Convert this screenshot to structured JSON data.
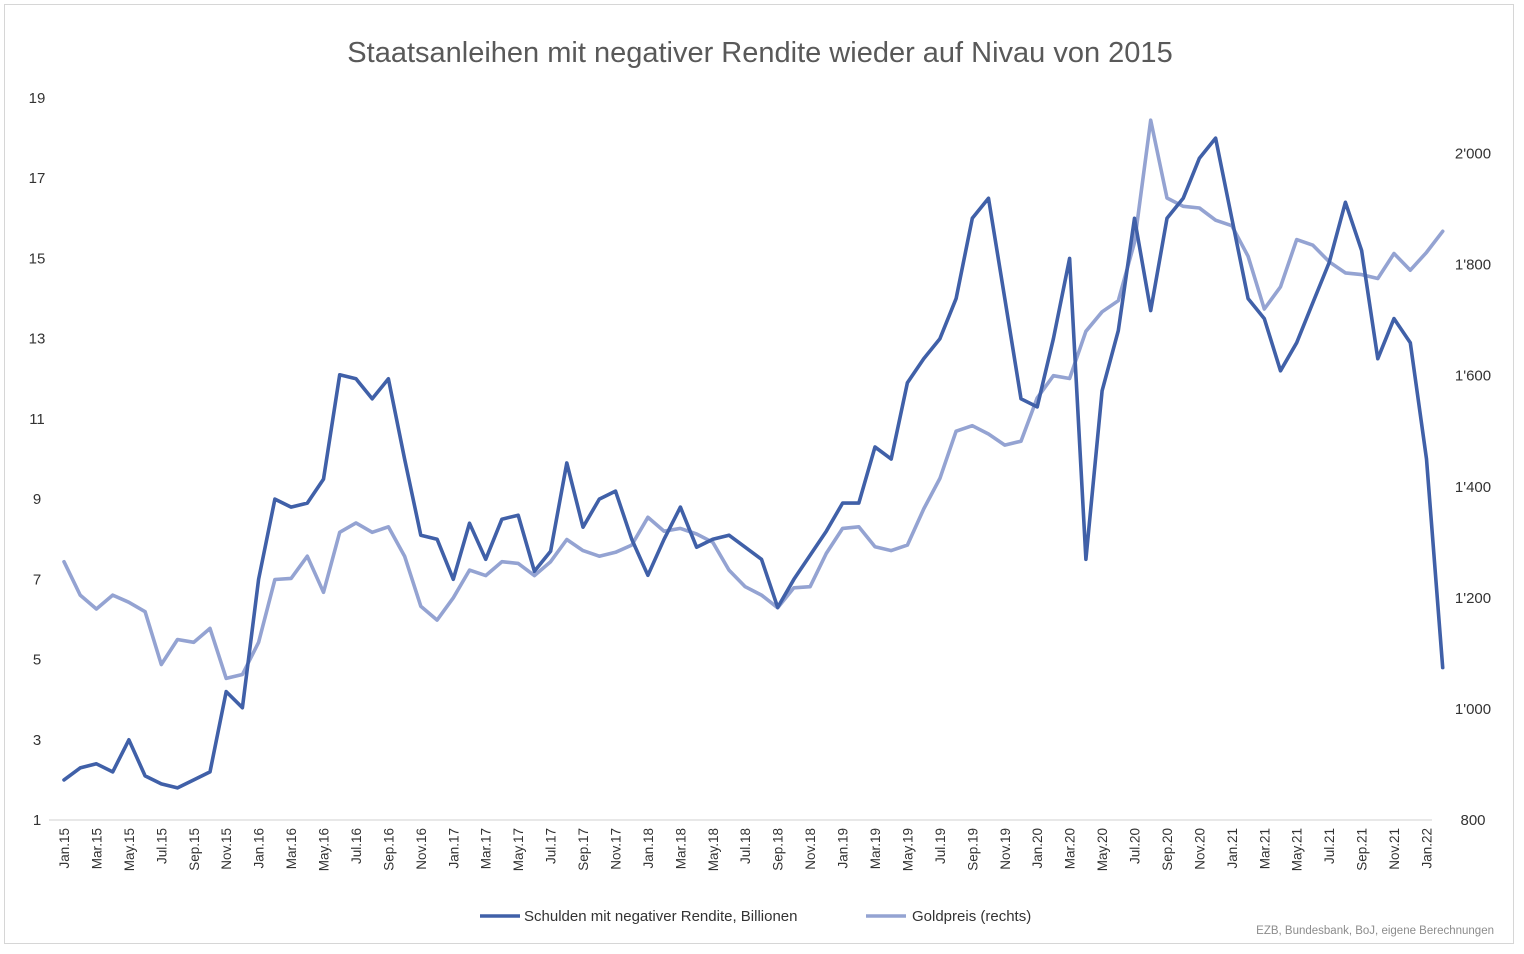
{
  "chart_data": {
    "type": "line",
    "title": "Staatsanleihen mit negativer Rendite wieder auf Nivau von 2015",
    "source": "EZB, Bundesbank, BoJ, eigene Berechnungen",
    "x_tick_labels": [
      "Jan.15",
      "Mar.15",
      "May.15",
      "Jul.15",
      "Sep.15",
      "Nov.15",
      "Jan.16",
      "Mar.16",
      "May.16",
      "Jul.16",
      "Sep.16",
      "Nov.16",
      "Jan.17",
      "Mar.17",
      "May.17",
      "Jul.17",
      "Sep.17",
      "Nov.17",
      "Jan.18",
      "Mar.18",
      "May.18",
      "Jul.18",
      "Sep.18",
      "Nov.18",
      "Jan.19",
      "Mar.19",
      "May.19",
      "Jul.19",
      "Sep.19",
      "Nov.19",
      "Jan.20",
      "Mar.20",
      "May.20",
      "Jul.20",
      "Sep.20",
      "Nov.20",
      "Jan.21",
      "Mar.21",
      "May.21",
      "Jul.21",
      "Sep.21",
      "Nov.21",
      "Jan.22"
    ],
    "y_left": {
      "min": 1,
      "max": 19,
      "ticks": [
        1,
        3,
        5,
        7,
        9,
        11,
        13,
        15,
        17,
        19
      ]
    },
    "y_right": {
      "min": 800,
      "max": 2100,
      "ticks": [
        800,
        1000,
        1200,
        1400,
        1600,
        1800,
        2000
      ],
      "tick_labels": [
        "800",
        "1'000",
        "1'200",
        "1'400",
        "1'600",
        "1'800",
        "2'000"
      ]
    },
    "grid": false,
    "legend_position": "bottom",
    "series": [
      {
        "name": "Schulden mit negativer Rendite, Billionen",
        "axis": "left",
        "color": "#4060a8",
        "values": [
          2.0,
          2.3,
          2.4,
          2.2,
          3.0,
          2.1,
          1.9,
          1.8,
          2.0,
          2.2,
          4.2,
          3.8,
          7.0,
          9.0,
          8.8,
          8.9,
          9.5,
          12.1,
          12.0,
          11.5,
          12.0,
          10.0,
          8.1,
          8.0,
          7.0,
          8.4,
          7.5,
          8.5,
          8.6,
          7.2,
          7.7,
          9.9,
          8.3,
          9.0,
          9.2,
          8.0,
          7.1,
          8.0,
          8.8,
          7.8,
          8.0,
          8.1,
          7.8,
          7.5,
          6.3,
          7.0,
          7.6,
          8.2,
          8.9,
          8.9,
          10.3,
          10.0,
          11.9,
          12.5,
          13.0,
          14.0,
          16.0,
          16.5,
          14.0,
          11.5,
          11.3,
          13.0,
          15.0,
          7.5,
          11.7,
          13.2,
          16.0,
          13.7,
          16.0,
          16.5,
          17.5,
          18.0,
          16.0,
          14.0,
          13.5,
          12.2,
          12.9,
          13.9,
          14.9,
          16.4,
          15.2,
          12.5,
          13.5,
          12.9,
          10.0,
          4.8
        ]
      },
      {
        "name": "Goldpreis (rechts)",
        "axis": "right",
        "color": "#94a3d2",
        "values": [
          1265,
          1205,
          1180,
          1205,
          1192,
          1175,
          1080,
          1125,
          1120,
          1145,
          1055,
          1062,
          1120,
          1233,
          1235,
          1275,
          1210,
          1318,
          1335,
          1318,
          1328,
          1275,
          1185,
          1160,
          1200,
          1250,
          1240,
          1265,
          1262,
          1240,
          1265,
          1305,
          1285,
          1275,
          1282,
          1295,
          1345,
          1320,
          1325,
          1315,
          1300,
          1250,
          1220,
          1205,
          1182,
          1218,
          1220,
          1280,
          1325,
          1328,
          1292,
          1285,
          1295,
          1360,
          1415,
          1500,
          1510,
          1495,
          1475,
          1482,
          1560,
          1600,
          1595,
          1680,
          1715,
          1735,
          1840,
          2060,
          1920,
          1905,
          1902,
          1880,
          1870,
          1815,
          1720,
          1760,
          1845,
          1835,
          1805,
          1785,
          1782,
          1775,
          1820,
          1790,
          1822,
          1860
        ]
      }
    ]
  }
}
